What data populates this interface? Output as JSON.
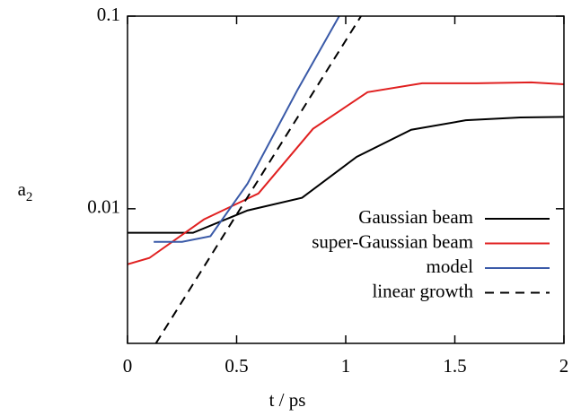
{
  "chart_data": {
    "type": "line",
    "x_label": "t / ps",
    "y_label": "a",
    "y_label_subscript": "2",
    "xlim": [
      0,
      2
    ],
    "xticks": [
      0,
      0.5,
      1,
      1.5,
      2
    ],
    "ylim": [
      0.002,
      0.1
    ],
    "yticks": [
      0.01,
      0.1
    ],
    "log_y": true,
    "legend": "lower right",
    "series": [
      {
        "name": "Gaussian beam",
        "color": "#000000",
        "dash": false,
        "x": [
          0,
          0.3,
          0.55,
          0.8,
          1.05,
          1.3,
          1.55,
          1.8,
          2
        ],
        "values": [
          0.0075,
          0.0075,
          0.0098,
          0.0114,
          0.0186,
          0.0257,
          0.0288,
          0.0298,
          0.03
        ]
      },
      {
        "name": "super-Gaussian beam",
        "color": "#e02020",
        "dash": false,
        "x": [
          0,
          0.1,
          0.35,
          0.6,
          0.85,
          1.1,
          1.35,
          1.6,
          1.85,
          2
        ],
        "values": [
          0.00515,
          0.00555,
          0.0088,
          0.012,
          0.026,
          0.0403,
          0.0448,
          0.0448,
          0.0453,
          0.0443
        ]
      },
      {
        "name": "model",
        "color": "#3a5aa8",
        "dash": false,
        "x": [
          0.12,
          0.25,
          0.38,
          0.55,
          0.78,
          0.97
        ],
        "values": [
          0.00673,
          0.00673,
          0.0072,
          0.0135,
          0.0416,
          0.1
        ]
      },
      {
        "name": "linear growth",
        "color": "#000000",
        "dash": true,
        "x": [
          0.13,
          1.07
        ],
        "values": [
          0.002,
          0.1
        ]
      }
    ]
  }
}
